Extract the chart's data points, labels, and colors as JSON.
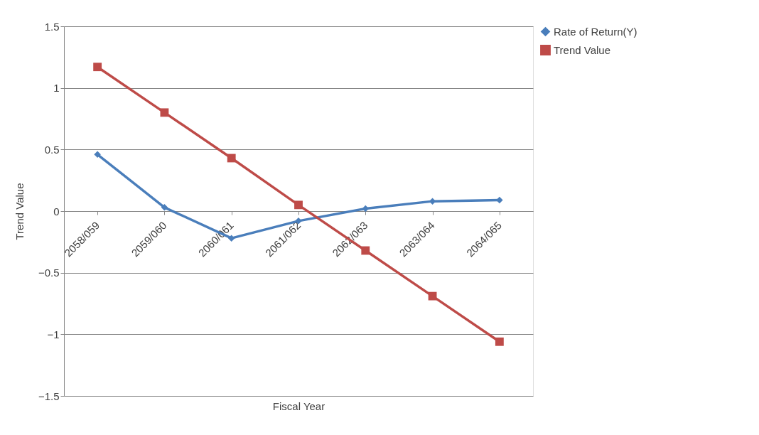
{
  "chart_data": {
    "type": "line",
    "xlabel": "Fiscal Year",
    "ylabel": "Trend Value",
    "categories": [
      "2058/059",
      "2059/060",
      "2060/061",
      "2061/062",
      "2062/063",
      "2063/064",
      "2064/065"
    ],
    "series": [
      {
        "name": "Rate of Return(Y)",
        "color": "#4a7ebb",
        "marker": "diamond",
        "values": [
          0.46,
          0.03,
          -0.22,
          -0.08,
          0.02,
          0.08,
          0.09
        ]
      },
      {
        "name": "Trend Value",
        "color": "#be4b48",
        "marker": "square",
        "values": [
          1.17,
          0.8,
          0.43,
          0.05,
          -0.32,
          -0.69,
          -1.06
        ]
      }
    ],
    "ylim": [
      -1.5,
      1.5
    ],
    "yticks": [
      -1.5,
      -1,
      -0.5,
      0,
      0.5,
      1,
      1.5
    ],
    "grid": "y",
    "legend": "right"
  }
}
